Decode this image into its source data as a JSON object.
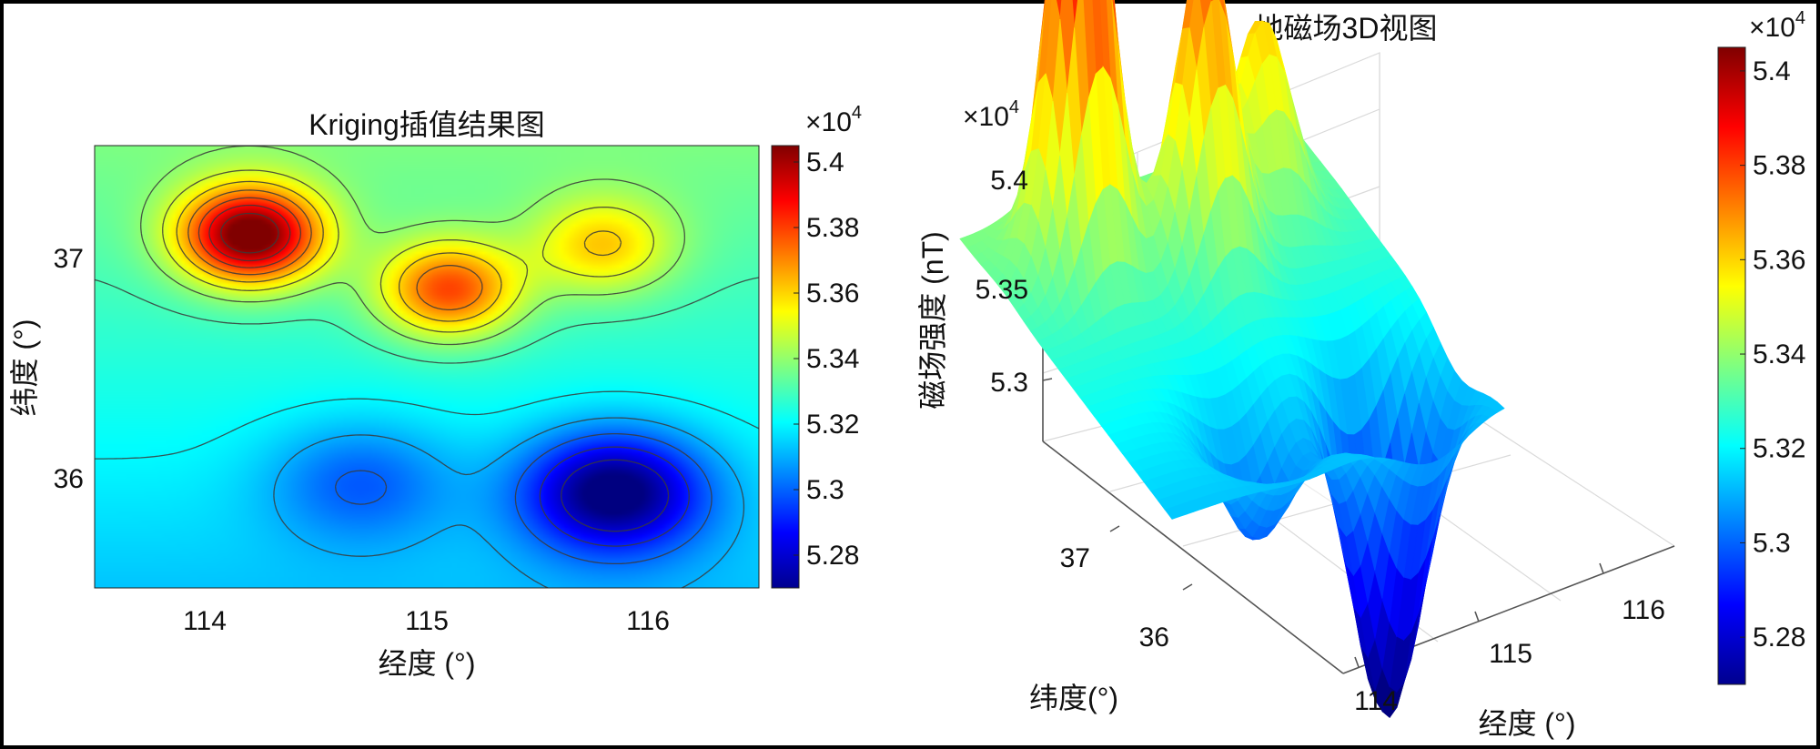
{
  "chart_data": [
    {
      "type": "heatmap",
      "title": "Kriging插值结果图",
      "xlabel": "经度 (°)",
      "ylabel": "纬度 (°)",
      "xlim": [
        113.5,
        116.5
      ],
      "ylim": [
        35.5,
        37.5
      ],
      "xticks": [
        "114",
        "115",
        "116"
      ],
      "xtick_values": [
        114,
        115,
        116
      ],
      "yticks": [
        "37",
        "36"
      ],
      "ytick_values": [
        37,
        36
      ],
      "contour_lines": true,
      "colormap": "jet",
      "colorbar": {
        "exponent_label": "×10",
        "exponent_power": "4",
        "ticks": [
          "5.4",
          "5.38",
          "5.36",
          "5.34",
          "5.32",
          "5.3",
          "5.28"
        ],
        "tick_values": [
          5.4,
          5.38,
          5.36,
          5.34,
          5.32,
          5.3,
          5.28
        ],
        "range": [
          5.27,
          5.405
        ]
      },
      "field_peaks": [
        {
          "x": 114.2,
          "y": 37.1,
          "value": 5.405,
          "kind": "max"
        },
        {
          "x": 115.1,
          "y": 36.85,
          "value": 5.375,
          "kind": "max"
        },
        {
          "x": 115.8,
          "y": 37.05,
          "value": 5.355,
          "kind": "max"
        },
        {
          "x": 115.85,
          "y": 35.93,
          "value": 5.272,
          "kind": "min"
        },
        {
          "x": 114.7,
          "y": 35.98,
          "value": 5.305,
          "kind": "min"
        }
      ]
    },
    {
      "type": "surface",
      "title": "地磁场3D视图",
      "xlabel": "经度 (°)",
      "ylabel": "纬度(°)",
      "zlabel": "磁场强度 (nT)",
      "xticks": [
        "114",
        "115",
        "116"
      ],
      "yticks": [
        "37",
        "36"
      ],
      "zticks": [
        "5.4",
        "5.35",
        "5.3"
      ],
      "z_exponent_label": "×10",
      "z_exponent_power": "4",
      "grid": true,
      "colormap": "jet",
      "colorbar": {
        "exponent_label": "×10",
        "exponent_power": "4",
        "ticks": [
          "5.4",
          "5.38",
          "5.36",
          "5.34",
          "5.32",
          "5.3",
          "5.28"
        ],
        "tick_values": [
          5.4,
          5.38,
          5.36,
          5.34,
          5.32,
          5.3,
          5.28
        ],
        "range": [
          5.27,
          5.405
        ]
      }
    }
  ]
}
